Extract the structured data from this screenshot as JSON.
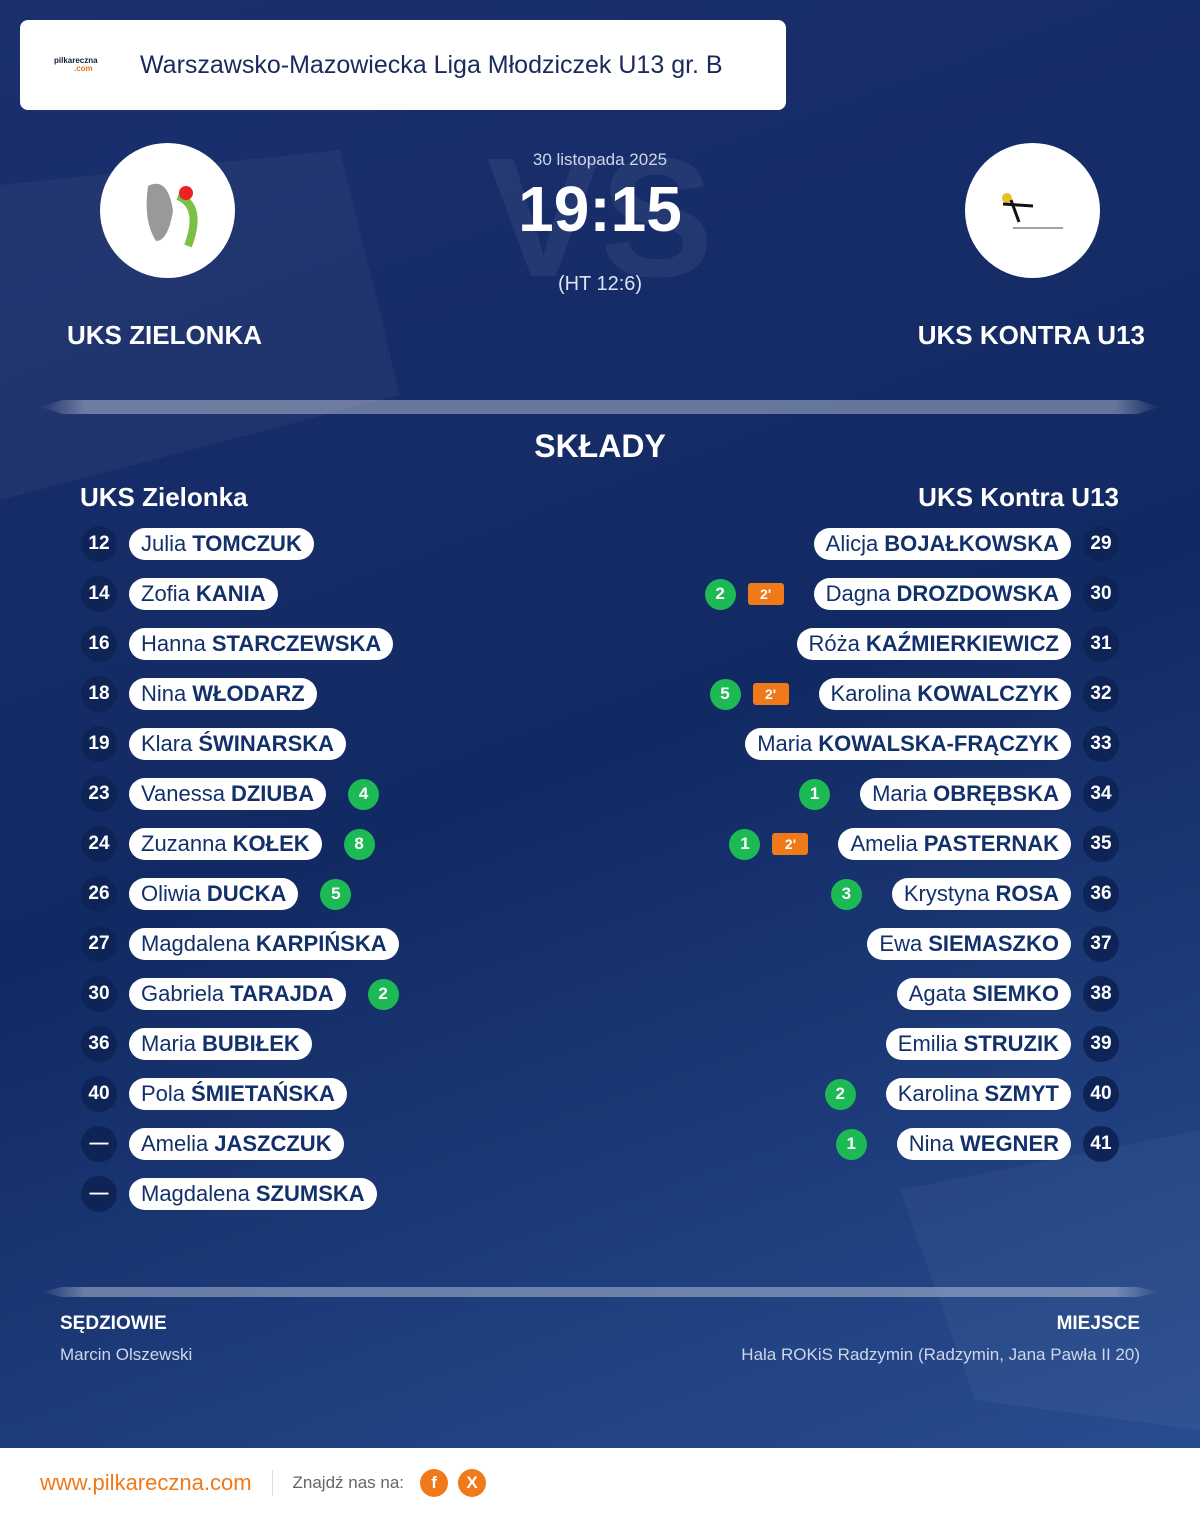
{
  "header": {
    "logo": {
      "name": "pilkareczna",
      "suffix": ".com"
    },
    "league": "Warszawsko-Mazowiecka Liga Młodziczek U13 gr. B"
  },
  "match": {
    "watermark": "VS",
    "date": "30 listopada 2025",
    "score": "19:15",
    "halftime": "(HT 12:6)",
    "home": {
      "name": "UKS ZIELONKA"
    },
    "away": {
      "name": "UKS KONTRA U13"
    }
  },
  "lineups": {
    "title": "SKŁADY",
    "home": {
      "name": "UKS Zielonka",
      "players": [
        {
          "number": 12,
          "first": "Julia",
          "last": "TOMCZUK"
        },
        {
          "number": 14,
          "first": "Zofia",
          "last": "KANIA"
        },
        {
          "number": 16,
          "first": "Hanna",
          "last": "STARCZEWSKA"
        },
        {
          "number": 18,
          "first": "Nina",
          "last": "WŁODARZ"
        },
        {
          "number": 19,
          "first": "Klara",
          "last": "ŚWINARSKA"
        },
        {
          "number": 23,
          "first": "Vanessa",
          "last": "DZIUBA",
          "goals": 4
        },
        {
          "number": 24,
          "first": "Zuzanna",
          "last": "KOŁEK",
          "goals": 8
        },
        {
          "number": 26,
          "first": "Oliwia",
          "last": "DUCKA",
          "goals": 5
        },
        {
          "number": 27,
          "first": "Magdalena",
          "last": "KARPIŃSKA"
        },
        {
          "number": 30,
          "first": "Gabriela",
          "last": "TARAJDA",
          "goals": 2
        },
        {
          "number": 36,
          "first": "Maria",
          "last": "BUBIŁEK"
        },
        {
          "number": 40,
          "first": "Pola",
          "last": "ŚMIETAŃSKA"
        },
        {
          "number": "—",
          "first": "Amelia",
          "last": "JASZCZUK"
        },
        {
          "number": "—",
          "first": "Magdalena",
          "last": "SZUMSKA"
        }
      ]
    },
    "away": {
      "name": "UKS Kontra U13",
      "players": [
        {
          "number": 29,
          "first": "Alicja",
          "last": "BOJAŁKOWSKA"
        },
        {
          "number": 30,
          "first": "Dagna",
          "last": "DROZDOWSKA",
          "goals": 2,
          "penalty": "2'"
        },
        {
          "number": 31,
          "first": "Róża",
          "last": "KAŹMIERKIEWICZ"
        },
        {
          "number": 32,
          "first": "Karolina",
          "last": "KOWALCZYK",
          "goals": 5,
          "penalty": "2'"
        },
        {
          "number": 33,
          "first": "Maria",
          "last": "KOWALSKA-FRĄCZYK"
        },
        {
          "number": 34,
          "first": "Maria",
          "last": "OBRĘBSKA",
          "goals": 1
        },
        {
          "number": 35,
          "first": "Amelia",
          "last": "PASTERNAK",
          "goals": 1,
          "penalty": "2'"
        },
        {
          "number": 36,
          "first": "Krystyna",
          "last": "ROSA",
          "goals": 3
        },
        {
          "number": 37,
          "first": "Ewa",
          "last": "SIEMASZKO"
        },
        {
          "number": 38,
          "first": "Agata",
          "last": "SIEMKO"
        },
        {
          "number": 39,
          "first": "Emilia",
          "last": "STRUZIK"
        },
        {
          "number": 40,
          "first": "Karolina",
          "last": "SZMYT",
          "goals": 2
        },
        {
          "number": 41,
          "first": "Nina",
          "last": "WEGNER",
          "goals": 1
        }
      ]
    }
  },
  "officials": {
    "label": "SĘDZIOWIE",
    "value": "Marcin Olszewski"
  },
  "venue": {
    "label": "MIEJSCE",
    "value": "Hala ROKiS Radzymin (Radzymin, Jana Pawła II 20)"
  },
  "footer": {
    "site": "www.pilkareczna.com",
    "find_us": "Znajdź nas na:",
    "social": [
      "f",
      "X"
    ]
  }
}
